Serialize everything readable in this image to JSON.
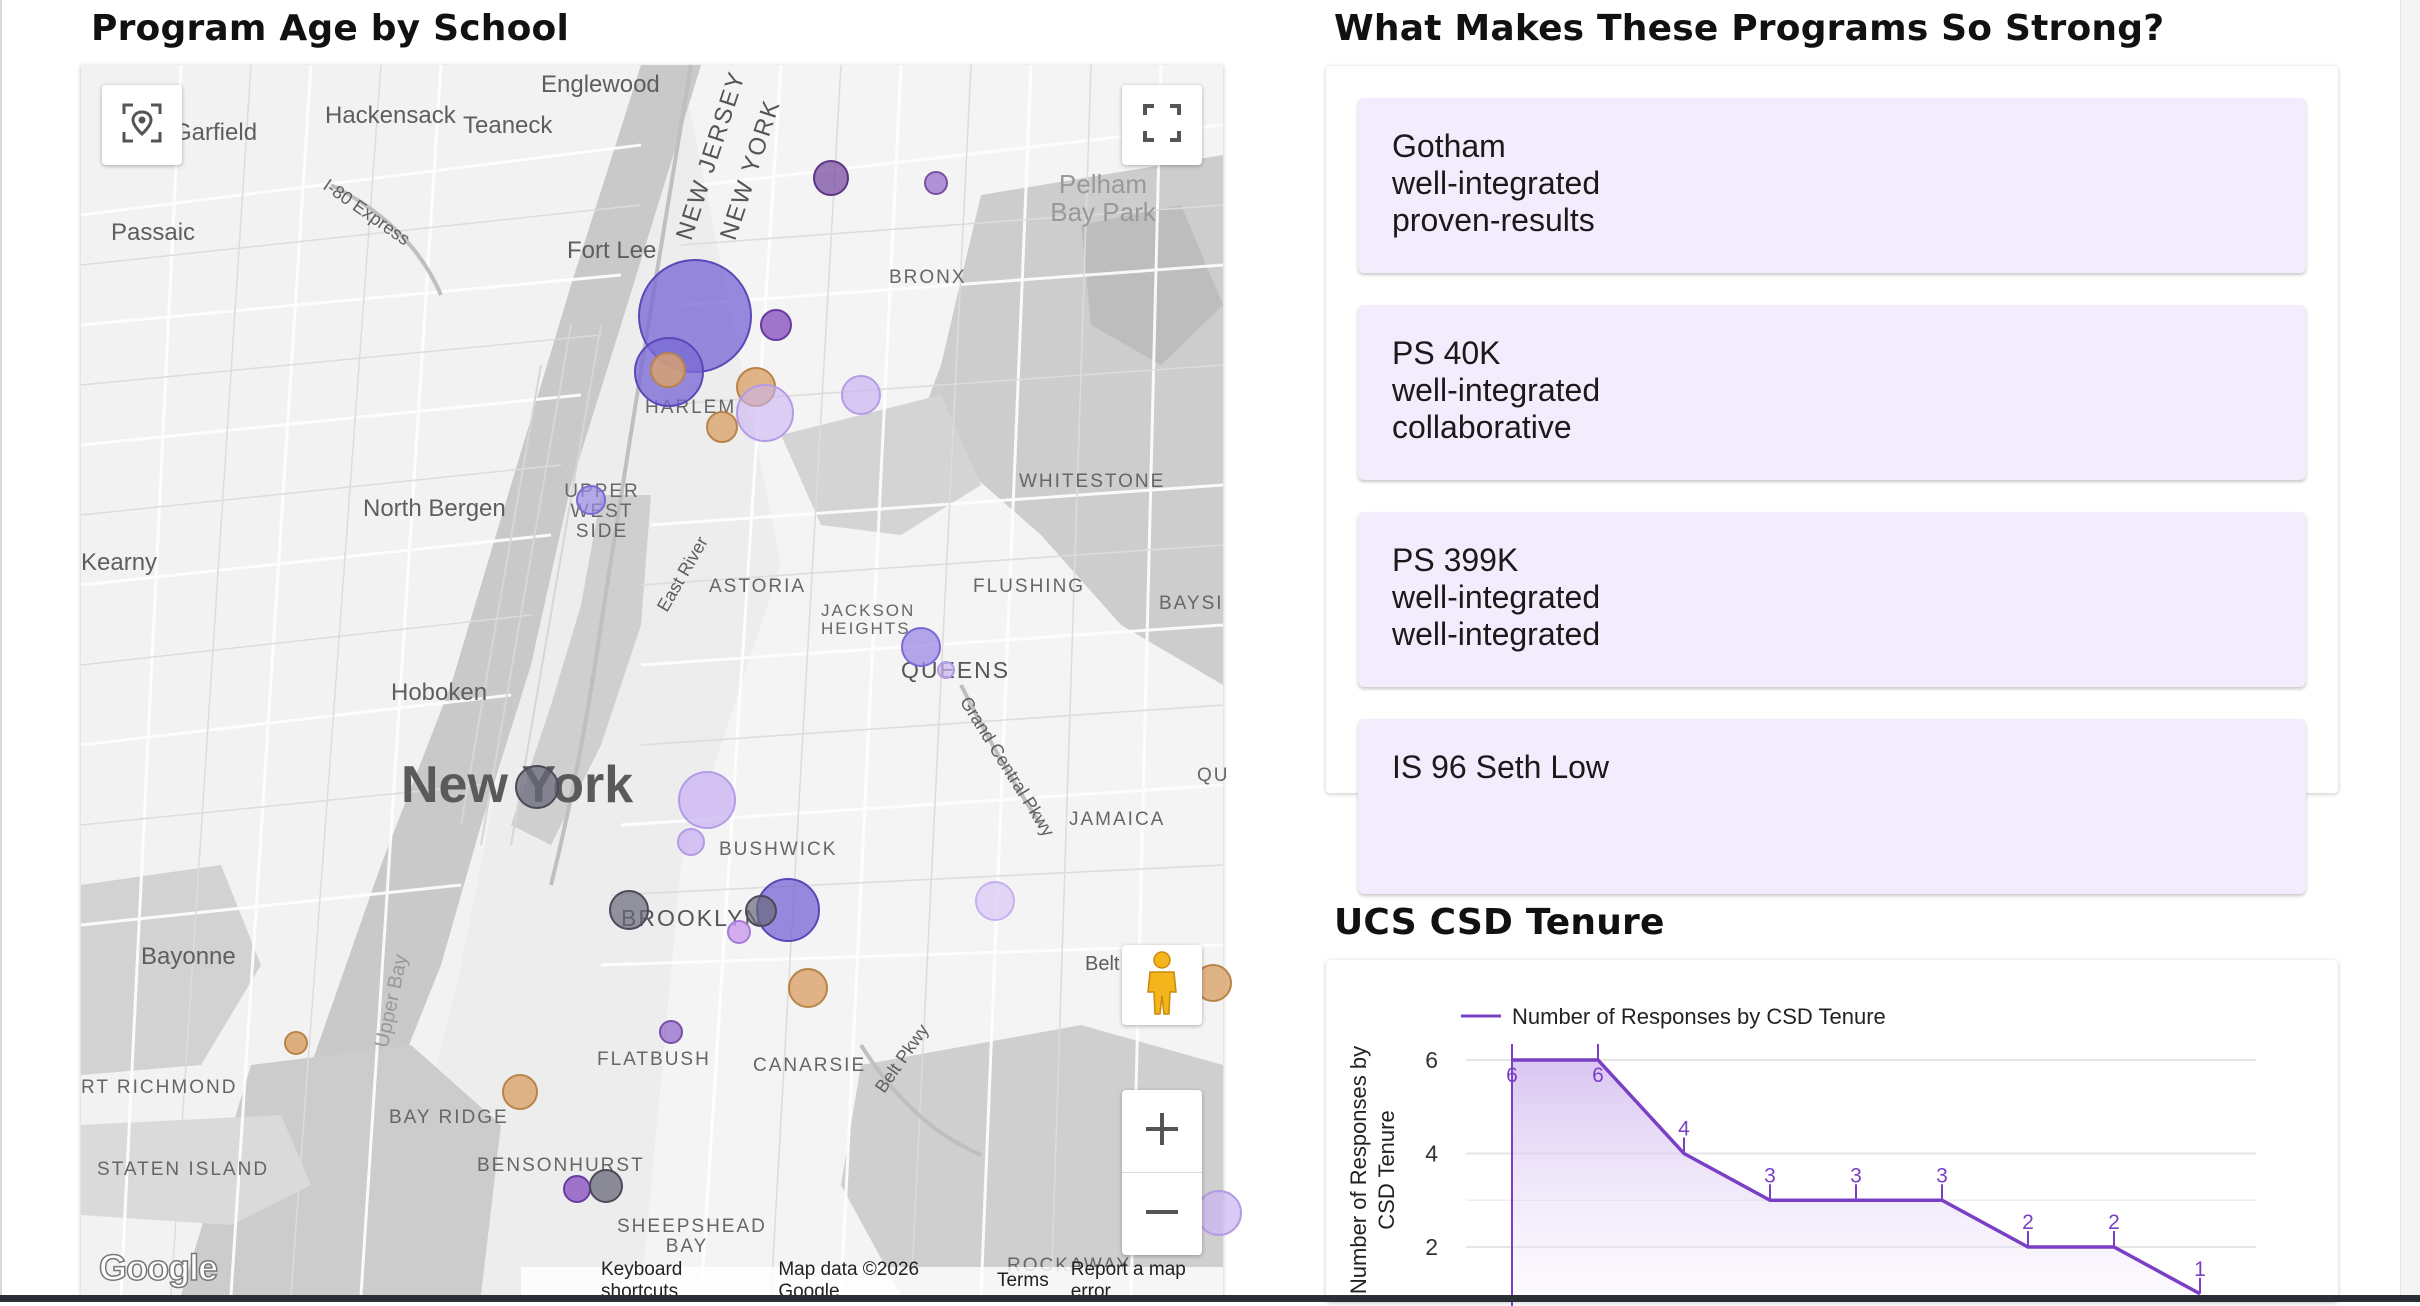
{
  "map_section": {
    "title": "Program Age by School",
    "labels": {
      "englewood": "Englewood",
      "hackensack": "Hackensack",
      "teaneck": "Teaneck",
      "garfield": "Garfield",
      "i80": "I-80 Express",
      "passaic": "Passaic",
      "fort_lee": "Fort Lee",
      "new_jersey": "NEW JERSEY",
      "new_york_state": "NEW YORK",
      "pelham_bay_park": "Pelham Bay Park",
      "bronx": "BRONX",
      "harlem": "HARLEM",
      "whitestone": "WHITESTONE",
      "north_bergen": "North Bergen",
      "upper_west_side": "UPPER WEST SIDE",
      "kearny": "Kearny",
      "east_river": "East River",
      "astoria": "ASTORIA",
      "jackson_heights": "JACKSON HEIGHTS",
      "flushing": "FLUSHING",
      "bayside": "BAYSI",
      "queens": "QUEENS",
      "hoboken": "Hoboken",
      "grand_central": "Grand Central Pkwy",
      "new_york_city": "New York",
      "jamaica": "JAMAICA",
      "bushwick": "BUSHWICK",
      "brooklyn": "BROOKLYN",
      "bayonne": "Bayonne",
      "upper_bay": "Upper Bay",
      "belt": "Belt",
      "flatbush": "FLATBUSH",
      "canarsie": "CANARSIE",
      "belt_pkwy": "Belt Pkwy",
      "port_richmond": "RT RICHMOND",
      "bay_ridge": "BAY RIDGE",
      "staten_island": "STATEN ISLAND",
      "bensonhurst": "BENSONHURST",
      "sheepshead_bay": "SHEEPSHEAD BAY",
      "rockaway": "ROCKAWAY",
      "qu": "QU"
    },
    "footer": {
      "keyboard": "Keyboard shortcuts",
      "map_data": "Map data ©2026 Google",
      "terms": "Terms",
      "report": "Report a map error"
    },
    "logo_text": "Google",
    "icons": {
      "locate": "location-pin-icon",
      "fullscreen": "fullscreen-icon",
      "pegman": "street-view-pegman-icon",
      "zoom_in": "plus-icon",
      "zoom_out": "minus-icon"
    },
    "colors": {
      "purple_dark": "#7a4fa3",
      "purple": "#7b6ad6",
      "lavender": "#c9b3f2",
      "orange": "#d9a36a",
      "gray": "#6a6a7a"
    }
  },
  "strengths_section": {
    "title": "What Makes These Programs So Strong?",
    "cards": [
      {
        "school": "Gotham",
        "line1": "well-integrated",
        "line2": "proven-results"
      },
      {
        "school": "PS 40K",
        "line1": "well-integrated",
        "line2": "collaborative"
      },
      {
        "school": "PS 399K",
        "line1": "well-integrated",
        "line2": "well-integrated"
      },
      {
        "school": "IS 96 Seth Low",
        "line1": "",
        "line2": ""
      }
    ]
  },
  "tenure_section": {
    "title": "UCS CSD Tenure"
  },
  "chart_data": {
    "type": "area",
    "title": "UCS CSD Tenure",
    "legend": [
      "Number of Responses by CSD Tenure"
    ],
    "legend_position": "top",
    "ylabel": "Number of Responses by CSD Tenure",
    "xlabel": "",
    "yticks": [
      2,
      4,
      6
    ],
    "ylim": [
      1,
      6
    ],
    "series": [
      {
        "name": "Number of Responses by CSD Tenure",
        "values": [
          6,
          6,
          4,
          3,
          3,
          3,
          2,
          2,
          1
        ]
      }
    ],
    "data_labels": [
      "6",
      "6",
      "4",
      "3",
      "3",
      "3",
      "2",
      "2",
      "1"
    ],
    "color": "#7a3fc4"
  }
}
